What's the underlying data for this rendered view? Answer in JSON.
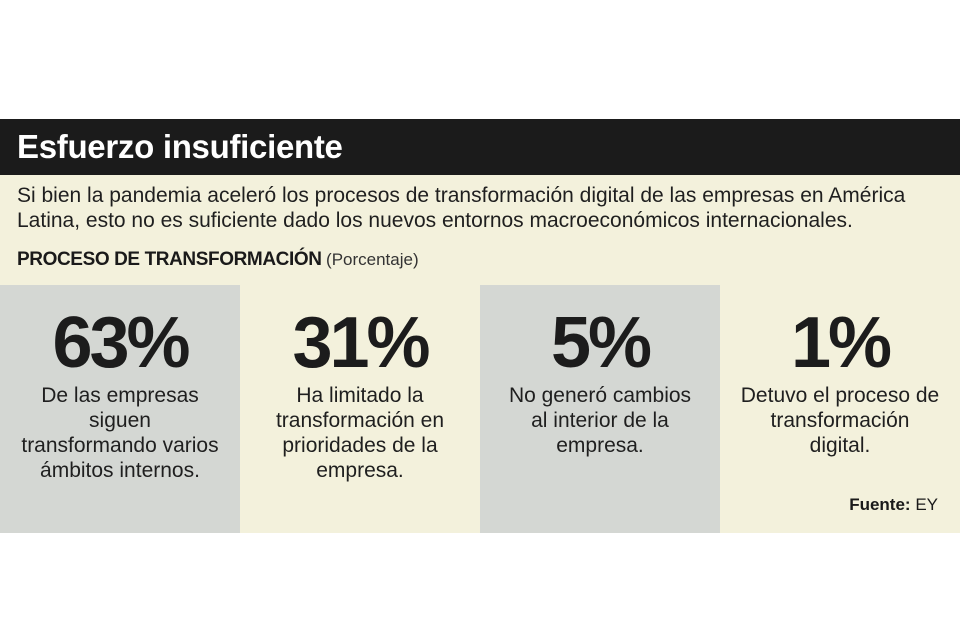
{
  "title": "Esfuerzo insuficiente",
  "subtitle": "Si bien la pandemia aceleró los procesos de transformación digital de las empresas en América Latina, esto no es suficiente dado los nuevos entornos macroeconómicos internacionales.",
  "section": {
    "label": "PROCESO DE TRANSFORMACIÓN",
    "unit": "(Porcentaje)"
  },
  "source": {
    "label": "Fuente:",
    "value": "EY"
  },
  "colors": {
    "title_bar": "#1b1b1b",
    "background": "#f3f1dc",
    "panel_gray": "#d4d7d3",
    "panel_cream": "#f3f1dc"
  },
  "chart_data": {
    "type": "table",
    "title": "PROCESO DE TRANSFORMACIÓN",
    "unit": "(Porcentaje)",
    "items": [
      {
        "value": 63,
        "label": "63%",
        "description": "De las empresas siguen transformando varios ámbitos internos."
      },
      {
        "value": 31,
        "label": "31%",
        "description": "Ha limitado la transformación en prioridades de la empresa."
      },
      {
        "value": 5,
        "label": "5%",
        "description": "No generó cambios al interior de la empresa."
      },
      {
        "value": 1,
        "label": "1%",
        "description": "Detuvo el proceso de transformación digital."
      }
    ]
  }
}
